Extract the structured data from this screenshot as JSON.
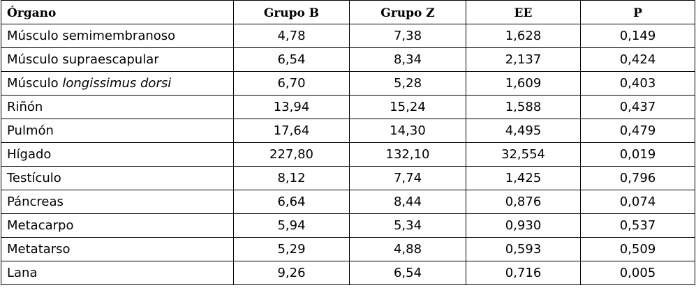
{
  "table": {
    "headers": [
      "Órgano",
      "Grupo B",
      "Grupo Z",
      "EE",
      "P"
    ],
    "rows": [
      {
        "organ": "Músculo semimembranoso",
        "organ_italic": "",
        "b": "4,78",
        "z": "7,38",
        "ee": "1,628",
        "p": "0,149"
      },
      {
        "organ": "Músculo supraescapular",
        "organ_italic": "",
        "b": "6,54",
        "z": "8,34",
        "ee": "2,137",
        "p": "0,424"
      },
      {
        "organ": "Músculo ",
        "organ_italic": "longissimus dorsi",
        "b": "6,70",
        "z": "5,28",
        "ee": "1,609",
        "p": "0,403"
      },
      {
        "organ": "Riñón",
        "organ_italic": "",
        "b": "13,94",
        "z": "15,24",
        "ee": "1,588",
        "p": "0,437"
      },
      {
        "organ": "Pulmón",
        "organ_italic": "",
        "b": "17,64",
        "z": "14,30",
        "ee": "4,495",
        "p": "0,479"
      },
      {
        "organ": "Hígado",
        "organ_italic": "",
        "b": "227,80",
        "z": "132,10",
        "ee": "32,554",
        "p": "0,019"
      },
      {
        "organ": "Testículo",
        "organ_italic": "",
        "b": "8,12",
        "z": "7,74",
        "ee": "1,425",
        "p": "0,796"
      },
      {
        "organ": "Páncreas",
        "organ_italic": "",
        "b": "6,64",
        "z": "8,44",
        "ee": "0,876",
        "p": "0,074"
      },
      {
        "organ": "Metacarpo",
        "organ_italic": "",
        "b": "5,94",
        "z": "5,34",
        "ee": "0,930",
        "p": "0,537"
      },
      {
        "organ": "Metatarso",
        "organ_italic": "",
        "b": "5,29",
        "z": "4,88",
        "ee": "0,593",
        "p": "0,509"
      },
      {
        "organ": "Lana",
        "organ_italic": "",
        "b": "9,26",
        "z": "6,54",
        "ee": "0,716",
        "p": "0,005"
      }
    ]
  }
}
